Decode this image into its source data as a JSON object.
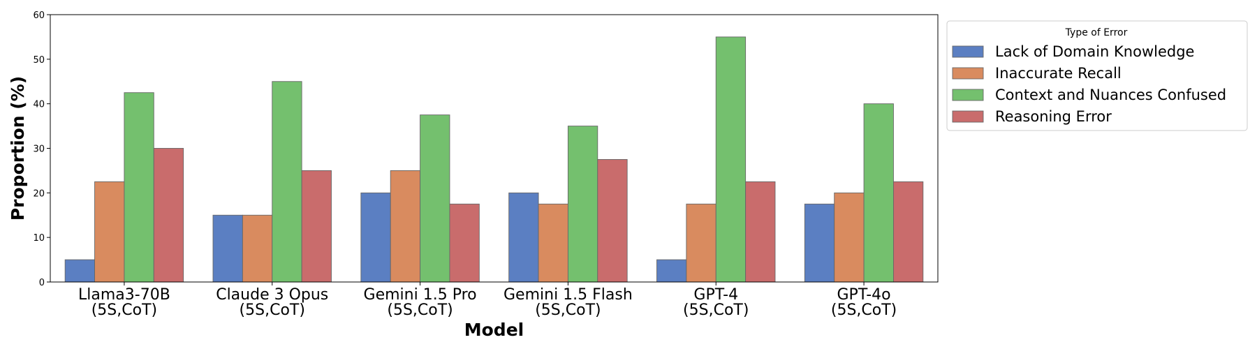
{
  "chart_data": {
    "type": "bar",
    "categories": [
      [
        "Llama3-70B",
        "(5S,CoT)"
      ],
      [
        "Claude 3 Opus",
        "(5S,CoT)"
      ],
      [
        "Gemini 1.5 Pro",
        "(5S,CoT)"
      ],
      [
        "Gemini 1.5 Flash",
        "(5S,CoT)"
      ],
      [
        "GPT-4",
        "(5S,CoT)"
      ],
      [
        "GPT-4o",
        "(5S,CoT)"
      ]
    ],
    "series": [
      {
        "name": "Lack of Domain Knowledge",
        "color": "#5b7fc2",
        "values": [
          5,
          15,
          20,
          20,
          5,
          17.5
        ]
      },
      {
        "name": "Inaccurate Recall",
        "color": "#d98b5f",
        "values": [
          22.5,
          15,
          25,
          17.5,
          17.5,
          20
        ]
      },
      {
        "name": "Context and Nuances Confused",
        "color": "#74c06e",
        "values": [
          42.5,
          45,
          37.5,
          35,
          55,
          40
        ]
      },
      {
        "name": "Reasoning Error",
        "color": "#c96c6c",
        "values": [
          30,
          25,
          17.5,
          27.5,
          22.5,
          22.5
        ]
      }
    ],
    "title": "",
    "xlabel": "Model",
    "ylabel": "Proportion (%)",
    "ylim": [
      0,
      60
    ],
    "yticks": [
      0,
      10,
      20,
      30,
      40,
      50,
      60
    ],
    "grid": false,
    "legend": {
      "title": "Type of Error",
      "placement": "outside-top-right"
    }
  }
}
